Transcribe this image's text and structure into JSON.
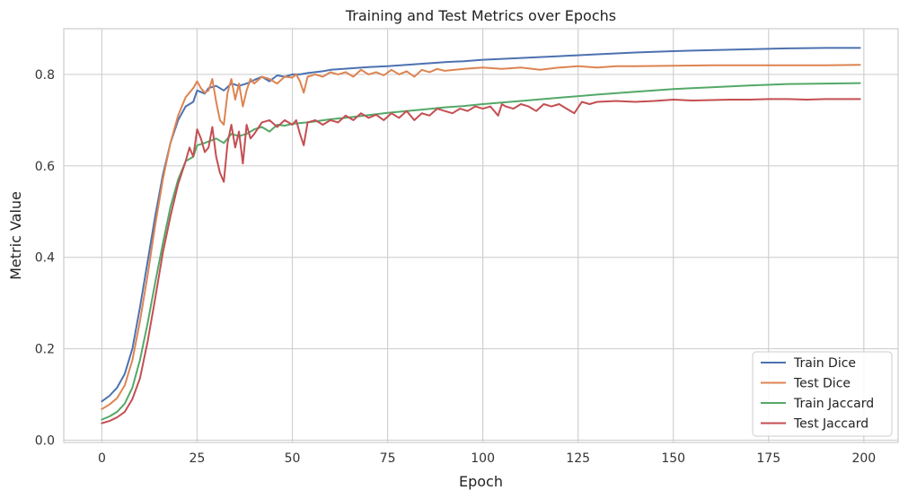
{
  "chart_data": {
    "type": "line",
    "title": "Training and Test Metrics over Epochs",
    "xlabel": "Epoch",
    "ylabel": "Metric Value",
    "xlim": [
      -10,
      209
    ],
    "ylim": [
      -0.005,
      0.9
    ],
    "xticks": [
      0,
      25,
      50,
      75,
      100,
      125,
      150,
      175,
      200
    ],
    "yticks": [
      0.0,
      0.2,
      0.4,
      0.6,
      0.8
    ],
    "xtick_labels": [
      "0",
      "25",
      "50",
      "75",
      "100",
      "125",
      "150",
      "175",
      "200"
    ],
    "ytick_labels": [
      "0.0",
      "0.2",
      "0.4",
      "0.6",
      "0.8"
    ],
    "grid": true,
    "legend_position": "bottom-right",
    "series": [
      {
        "name": "Train Dice",
        "color": "#4c72b0",
        "x": [
          0,
          2,
          4,
          6,
          8,
          10,
          12,
          14,
          16,
          18,
          20,
          22,
          24,
          25,
          27,
          28,
          30,
          32,
          34,
          36,
          38,
          40,
          42,
          44,
          46,
          48,
          50,
          52,
          54,
          56,
          58,
          60,
          65,
          70,
          75,
          80,
          85,
          90,
          95,
          100,
          110,
          120,
          130,
          140,
          150,
          160,
          170,
          180,
          190,
          199
        ],
        "y": [
          0.085,
          0.097,
          0.115,
          0.145,
          0.2,
          0.29,
          0.39,
          0.49,
          0.58,
          0.65,
          0.7,
          0.73,
          0.74,
          0.765,
          0.758,
          0.77,
          0.775,
          0.765,
          0.78,
          0.775,
          0.78,
          0.788,
          0.795,
          0.785,
          0.798,
          0.795,
          0.8,
          0.8,
          0.803,
          0.805,
          0.807,
          0.81,
          0.813,
          0.816,
          0.818,
          0.821,
          0.824,
          0.827,
          0.829,
          0.832,
          0.836,
          0.84,
          0.844,
          0.848,
          0.851,
          0.853,
          0.855,
          0.857,
          0.858,
          0.858
        ]
      },
      {
        "name": "Test Dice",
        "color": "#dd8452",
        "x": [
          0,
          2,
          4,
          6,
          8,
          10,
          12,
          14,
          16,
          18,
          20,
          22,
          24,
          25,
          26,
          27,
          28,
          29,
          30,
          31,
          32,
          33,
          34,
          35,
          36,
          37,
          38,
          39,
          40,
          42,
          44,
          46,
          48,
          50,
          51,
          52,
          53,
          54,
          56,
          58,
          60,
          62,
          64,
          66,
          68,
          70,
          72,
          74,
          76,
          78,
          80,
          82,
          84,
          86,
          88,
          90,
          95,
          100,
          105,
          110,
          115,
          120,
          125,
          130,
          135,
          140,
          150,
          160,
          170,
          180,
          190,
          199
        ],
        "y": [
          0.068,
          0.078,
          0.092,
          0.12,
          0.175,
          0.26,
          0.36,
          0.47,
          0.57,
          0.65,
          0.71,
          0.75,
          0.77,
          0.785,
          0.77,
          0.76,
          0.765,
          0.79,
          0.74,
          0.7,
          0.69,
          0.76,
          0.79,
          0.745,
          0.78,
          0.73,
          0.765,
          0.79,
          0.78,
          0.795,
          0.79,
          0.78,
          0.795,
          0.793,
          0.8,
          0.785,
          0.76,
          0.795,
          0.8,
          0.795,
          0.805,
          0.8,
          0.805,
          0.795,
          0.81,
          0.8,
          0.805,
          0.798,
          0.81,
          0.8,
          0.807,
          0.795,
          0.81,
          0.805,
          0.812,
          0.808,
          0.812,
          0.815,
          0.812,
          0.815,
          0.81,
          0.815,
          0.818,
          0.815,
          0.818,
          0.818,
          0.819,
          0.82,
          0.82,
          0.82,
          0.82,
          0.821
        ]
      },
      {
        "name": "Train Jaccard",
        "color": "#55a868",
        "x": [
          0,
          2,
          4,
          6,
          8,
          10,
          12,
          14,
          16,
          18,
          20,
          22,
          24,
          25,
          27,
          30,
          32,
          34,
          36,
          38,
          40,
          42,
          44,
          46,
          48,
          50,
          55,
          60,
          65,
          70,
          75,
          80,
          85,
          90,
          95,
          100,
          110,
          120,
          130,
          140,
          150,
          160,
          170,
          180,
          190,
          199
        ],
        "y": [
          0.045,
          0.052,
          0.062,
          0.08,
          0.115,
          0.175,
          0.255,
          0.345,
          0.43,
          0.51,
          0.57,
          0.61,
          0.62,
          0.645,
          0.65,
          0.66,
          0.65,
          0.67,
          0.665,
          0.67,
          0.68,
          0.685,
          0.675,
          0.69,
          0.688,
          0.692,
          0.696,
          0.702,
          0.706,
          0.711,
          0.716,
          0.72,
          0.724,
          0.728,
          0.731,
          0.735,
          0.742,
          0.749,
          0.756,
          0.762,
          0.768,
          0.772,
          0.776,
          0.779,
          0.78,
          0.781
        ]
      },
      {
        "name": "Test Jaccard",
        "color": "#c44e52",
        "x": [
          0,
          2,
          4,
          6,
          8,
          10,
          12,
          14,
          16,
          18,
          20,
          22,
          23,
          24,
          25,
          26,
          27,
          28,
          29,
          30,
          31,
          32,
          33,
          34,
          35,
          36,
          37,
          38,
          39,
          40,
          42,
          44,
          46,
          48,
          50,
          51,
          52,
          53,
          54,
          56,
          58,
          60,
          62,
          64,
          66,
          68,
          70,
          72,
          74,
          76,
          78,
          80,
          82,
          84,
          86,
          88,
          90,
          92,
          94,
          96,
          98,
          100,
          102,
          104,
          105,
          106,
          108,
          110,
          112,
          114,
          116,
          118,
          120,
          122,
          124,
          126,
          128,
          130,
          135,
          140,
          145,
          150,
          155,
          160,
          165,
          170,
          175,
          180,
          185,
          190,
          199
        ],
        "y": [
          0.037,
          0.042,
          0.05,
          0.062,
          0.09,
          0.135,
          0.215,
          0.31,
          0.41,
          0.49,
          0.56,
          0.61,
          0.64,
          0.62,
          0.68,
          0.66,
          0.63,
          0.64,
          0.685,
          0.62,
          0.585,
          0.565,
          0.65,
          0.69,
          0.64,
          0.675,
          0.605,
          0.69,
          0.66,
          0.67,
          0.695,
          0.7,
          0.685,
          0.7,
          0.69,
          0.7,
          0.67,
          0.645,
          0.695,
          0.7,
          0.69,
          0.7,
          0.695,
          0.71,
          0.7,
          0.715,
          0.705,
          0.712,
          0.7,
          0.715,
          0.705,
          0.72,
          0.7,
          0.715,
          0.71,
          0.725,
          0.72,
          0.715,
          0.725,
          0.72,
          0.73,
          0.725,
          0.73,
          0.71,
          0.735,
          0.73,
          0.725,
          0.735,
          0.73,
          0.72,
          0.735,
          0.73,
          0.735,
          0.725,
          0.715,
          0.74,
          0.735,
          0.74,
          0.742,
          0.74,
          0.742,
          0.745,
          0.743,
          0.744,
          0.745,
          0.745,
          0.746,
          0.746,
          0.745,
          0.746,
          0.746
        ]
      }
    ]
  }
}
